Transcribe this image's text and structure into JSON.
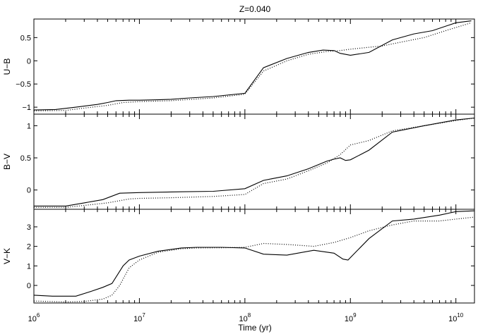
{
  "chart_data": {
    "type": "line",
    "title": "Z=0.040",
    "xlabel": "Time (yr)",
    "xscale": "log",
    "xlim": [
      1000000,
      15000000000
    ],
    "x_tick_values": [
      1000000,
      10000000,
      100000000,
      1000000000,
      10000000000
    ],
    "x_tick_labels": [
      {
        "base": "10",
        "exp": "6"
      },
      {
        "base": "10",
        "exp": "7"
      },
      {
        "base": "10",
        "exp": "8"
      },
      {
        "base": "10",
        "exp": "9"
      },
      {
        "base": "10",
        "exp": "10"
      }
    ],
    "grid": false,
    "legend": "none",
    "panels": [
      {
        "ylabel": "U−B",
        "ylim": [
          -1.15,
          0.9
        ],
        "yticks": [
          -1,
          -0.5,
          0,
          0.5
        ],
        "ytick_labels": [
          "−1",
          "−0.5",
          "0",
          "0.5"
        ],
        "series": [
          {
            "style": "solid",
            "x": [
              1000000,
              1600000,
              2500000,
              4000000,
              5000000,
              6000000,
              8000000,
              10000000,
              15000000,
              20000000,
              30000000,
              50000000,
              100000000,
              150000000,
              250000000,
              400000000,
              550000000,
              700000000,
              800000000,
              1000000000,
              1500000000,
              2500000000,
              4000000000,
              6000000000,
              10000000000,
              14000000000
            ],
            "y": [
              -1.06,
              -1.05,
              -1.0,
              -0.94,
              -0.9,
              -0.86,
              -0.85,
              -0.85,
              -0.84,
              -0.83,
              -0.8,
              -0.77,
              -0.7,
              -0.15,
              0.05,
              0.18,
              0.23,
              0.22,
              0.16,
              0.12,
              0.18,
              0.45,
              0.58,
              0.65,
              0.82,
              0.86
            ]
          },
          {
            "style": "dotted",
            "x": [
              1000000,
              2000000,
              3000000,
              5000000,
              7000000,
              10000000,
              20000000,
              50000000,
              100000000,
              150000000,
              250000000,
              400000000,
              600000000,
              800000000,
              1000000000,
              2000000000,
              3000000000,
              5000000000,
              8000000000,
              14000000000
            ],
            "y": [
              -1.08,
              -1.07,
              -1.02,
              -0.96,
              -0.9,
              -0.88,
              -0.86,
              -0.8,
              -0.72,
              -0.22,
              0.0,
              0.14,
              0.2,
              0.22,
              0.25,
              0.32,
              0.4,
              0.5,
              0.65,
              0.82
            ]
          }
        ]
      },
      {
        "ylabel": "B−V",
        "ylim": [
          -0.3,
          1.18
        ],
        "yticks": [
          0,
          0.5,
          1
        ],
        "ytick_labels": [
          "0",
          "0.5",
          "1"
        ],
        "series": [
          {
            "style": "solid",
            "x": [
              1000000,
              2000000,
              3000000,
              4500000,
              6500000,
              10000000,
              20000000,
              50000000,
              100000000,
              150000000,
              250000000,
              400000000,
              600000000,
              700000000,
              800000000,
              900000000,
              1000000000,
              1500000000,
              2500000000,
              5000000000,
              10000000000,
              15000000000
            ],
            "y": [
              -0.25,
              -0.25,
              -0.2,
              -0.15,
              -0.05,
              -0.04,
              -0.03,
              -0.02,
              0.02,
              0.15,
              0.22,
              0.33,
              0.45,
              0.48,
              0.5,
              0.46,
              0.47,
              0.62,
              0.9,
              1.0,
              1.09,
              1.12
            ]
          },
          {
            "style": "dotted",
            "x": [
              1000000,
              2000000,
              3000000,
              5000000,
              8000000,
              10000000,
              20000000,
              50000000,
              100000000,
              150000000,
              250000000,
              400000000,
              600000000,
              800000000,
              1000000000,
              1500000000,
              2500000000,
              5000000000,
              10000000000,
              15000000000
            ],
            "y": [
              -0.27,
              -0.27,
              -0.24,
              -0.2,
              -0.14,
              -0.13,
              -0.12,
              -0.1,
              -0.07,
              0.1,
              0.17,
              0.3,
              0.42,
              0.55,
              0.7,
              0.77,
              0.92,
              1.0,
              1.08,
              1.12
            ]
          }
        ]
      },
      {
        "ylabel": "V−K",
        "ylim": [
          -0.9,
          3.9
        ],
        "yticks": [
          0,
          1,
          2,
          3
        ],
        "ytick_labels": [
          "0",
          "1",
          "2",
          "3"
        ],
        "series": [
          {
            "style": "solid",
            "x": [
              1000000,
              1500000,
              2500000,
              3500000,
              4500000,
              5500000,
              7000000,
              8000000,
              10000000,
              15000000,
              25000000,
              35000000,
              60000000,
              100000000,
              150000000,
              250000000,
              450000000,
              700000000,
              850000000,
              950000000,
              1500000000,
              2500000000,
              4000000000,
              7000000000,
              10000000000,
              15000000000
            ],
            "y": [
              -0.5,
              -0.55,
              -0.55,
              -0.3,
              -0.1,
              0.1,
              1.0,
              1.3,
              1.5,
              1.75,
              1.92,
              1.95,
              1.95,
              1.92,
              1.6,
              1.55,
              1.8,
              1.65,
              1.35,
              1.3,
              2.4,
              3.3,
              3.4,
              3.6,
              3.78,
              3.82
            ]
          },
          {
            "style": "dotted",
            "x": [
              1000000,
              2000000,
              3000000,
              4500000,
              5500000,
              6500000,
              8000000,
              10000000,
              15000000,
              25000000,
              35000000,
              60000000,
              100000000,
              150000000,
              250000000,
              450000000,
              700000000,
              1000000000,
              1500000000,
              2500000000,
              4000000000,
              7000000000,
              10000000000,
              15000000000
            ],
            "y": [
              -0.8,
              -0.85,
              -0.82,
              -0.7,
              -0.5,
              0.0,
              0.9,
              1.3,
              1.7,
              1.88,
              1.92,
              1.93,
              1.95,
              2.15,
              2.1,
              2.0,
              2.2,
              2.45,
              2.8,
              3.1,
              3.3,
              3.3,
              3.4,
              3.5
            ]
          }
        ]
      }
    ]
  }
}
